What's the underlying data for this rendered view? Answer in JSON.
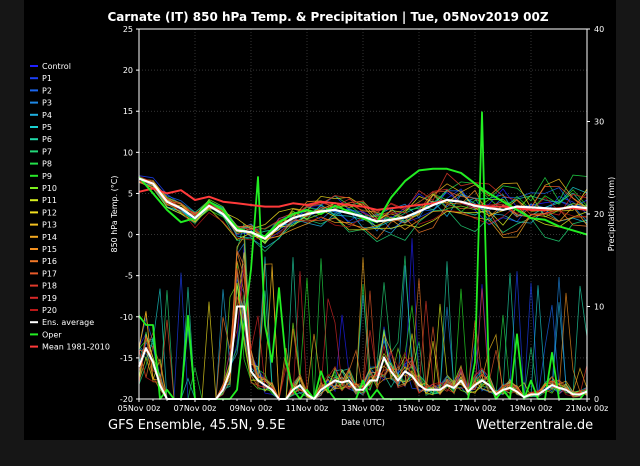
{
  "title": "Carnate  (IT)  850 hPa Temp. & Precipitation | Tue, 05Nov2019 00Z",
  "footer_left": "GFS Ensemble, 45.5N, 9.5E",
  "footer_right": "Wetterzentrale.de",
  "chart_data": {
    "type": "line",
    "xlabel": "Date (UTC)",
    "ylabel_left": "850 hPa Temp. (°C)",
    "ylabel_right": "Precipitation (mm)",
    "x_ticks": [
      "05Nov 00z",
      "07Nov 00z",
      "09Nov 00z",
      "11Nov 00z",
      "13Nov 00z",
      "15Nov 00z",
      "17Nov 00z",
      "19Nov 00z",
      "21Nov 00z"
    ],
    "x_range_hours": [
      0,
      384
    ],
    "ylim_left": [
      -20,
      25
    ],
    "ylim_right": [
      0,
      40
    ],
    "y_ticks_left": [
      "25",
      "20",
      "15",
      "10",
      "5",
      "0",
      "-5",
      "-10",
      "-15",
      "-20"
    ],
    "y_ticks_right": [
      "40",
      "30",
      "20",
      "10",
      "0"
    ],
    "grid": true,
    "legend_position": "left",
    "legend": [
      {
        "name": "Control",
        "color": "#2020ff"
      },
      {
        "name": "P1",
        "color": "#1b3ff6"
      },
      {
        "name": "P2",
        "color": "#1a66ee"
      },
      {
        "name": "P3",
        "color": "#1e88e5"
      },
      {
        "name": "P4",
        "color": "#1fb0e0"
      },
      {
        "name": "P5",
        "color": "#1ad0d0"
      },
      {
        "name": "P6",
        "color": "#20d8a8"
      },
      {
        "name": "P7",
        "color": "#22d878"
      },
      {
        "name": "P8",
        "color": "#22e04a"
      },
      {
        "name": "P9",
        "color": "#28e828"
      },
      {
        "name": "P10",
        "color": "#7cf01e"
      },
      {
        "name": "P11",
        "color": "#d8f020"
      },
      {
        "name": "P12",
        "color": "#f2e020"
      },
      {
        "name": "P13",
        "color": "#f2c020"
      },
      {
        "name": "P14",
        "color": "#f2a820"
      },
      {
        "name": "P15",
        "color": "#f29020"
      },
      {
        "name": "P16",
        "color": "#f07828"
      },
      {
        "name": "P17",
        "color": "#e85a2a"
      },
      {
        "name": "P18",
        "color": "#e03a2a"
      },
      {
        "name": "P19",
        "color": "#d82828"
      },
      {
        "name": "P20",
        "color": "#b81818"
      },
      {
        "name": "Ens. average",
        "color": "#ffffff"
      },
      {
        "name": "Oper",
        "color": "#22ee22"
      },
      {
        "name": "Mean 1981-2010",
        "color": "#ff3a3a"
      }
    ],
    "series": [
      {
        "name": "Ens. average",
        "axis": "left",
        "x": [
          0,
          12,
          24,
          36,
          48,
          60,
          72,
          84,
          96,
          108,
          120,
          132,
          144,
          156,
          168,
          180,
          192,
          204,
          216,
          228,
          240,
          252,
          264,
          276,
          288,
          300,
          312,
          324,
          336,
          348,
          360,
          372,
          384
        ],
        "y": [
          6.8,
          6.2,
          4.0,
          3.2,
          2.0,
          3.5,
          2.5,
          0.5,
          0.3,
          -0.5,
          1.0,
          2.0,
          2.5,
          2.8,
          3.0,
          2.6,
          2.2,
          1.6,
          1.8,
          2.1,
          2.8,
          3.6,
          4.2,
          4.0,
          3.5,
          3.2,
          3.0,
          3.4,
          3.3,
          3.2,
          3.1,
          3.4,
          3.2
        ]
      },
      {
        "name": "Mean 1981-2010",
        "axis": "left",
        "x": [
          0,
          12,
          24,
          36,
          48,
          60,
          72,
          84,
          96,
          108,
          120,
          132,
          144,
          156,
          168,
          180,
          192,
          204,
          216,
          228,
          240,
          252,
          264,
          276,
          288,
          300,
          312,
          324,
          336,
          348,
          360,
          372,
          384
        ],
        "y": [
          5.2,
          5.6,
          5.0,
          5.4,
          4.2,
          4.6,
          4.0,
          3.8,
          3.6,
          3.4,
          3.4,
          3.8,
          3.6,
          4.0,
          3.8,
          3.6,
          3.4,
          3.0,
          3.2,
          3.4,
          3.6,
          3.8,
          4.2,
          4.0,
          3.6,
          3.4,
          3.4,
          3.2,
          3.0,
          3.0,
          3.2,
          3.2,
          3.0
        ]
      },
      {
        "name": "Oper",
        "axis": "left",
        "x": [
          0,
          12,
          24,
          36,
          48,
          60,
          72,
          84,
          96,
          108,
          120,
          132,
          144,
          156,
          168,
          180,
          192,
          204,
          216,
          228,
          240,
          252,
          264,
          276,
          288,
          300,
          312,
          324,
          336,
          348,
          360,
          372,
          384
        ],
        "y": [
          7.0,
          5.0,
          3.0,
          1.5,
          2.0,
          4.0,
          3.0,
          0.8,
          0.2,
          -0.2,
          1.5,
          2.5,
          3.0,
          2.5,
          3.5,
          2.8,
          2.0,
          1.5,
          4.5,
          6.5,
          7.8,
          8.0,
          8.0,
          7.5,
          6.2,
          5.0,
          4.0,
          3.0,
          2.0,
          1.8,
          1.0,
          0.5,
          0.0
        ]
      },
      {
        "name": "Oper precipitation",
        "axis": "right",
        "x": [
          0,
          6,
          12,
          18,
          24,
          30,
          36,
          42,
          48,
          54,
          60,
          66,
          72,
          78,
          84,
          90,
          96,
          102,
          108,
          114,
          120,
          126,
          132,
          138,
          144,
          150,
          156,
          162,
          168,
          174,
          180,
          186,
          192,
          198,
          204,
          210,
          216,
          222,
          228,
          234,
          240,
          246,
          252,
          258,
          264,
          270,
          276,
          282,
          288,
          294,
          300,
          306,
          312,
          318,
          324,
          330,
          336,
          342,
          348,
          354,
          360,
          366,
          372,
          378,
          384
        ],
        "y": [
          9,
          8,
          8,
          0,
          1,
          0,
          0,
          9,
          0,
          0,
          0,
          0,
          0,
          0,
          1,
          8,
          14,
          24,
          8,
          4,
          12,
          4,
          1,
          0,
          1,
          0,
          3,
          1,
          0,
          0,
          0,
          0,
          2,
          0,
          1,
          0,
          0,
          0,
          0,
          0,
          0,
          0,
          0,
          0,
          0,
          0,
          0,
          0,
          4,
          31,
          2,
          0,
          1,
          0,
          7,
          0,
          2,
          0,
          0,
          5,
          0,
          0,
          0,
          0,
          1
        ]
      },
      {
        "name": "Ens. average precipitation",
        "axis": "right",
        "x": [
          0,
          6,
          12,
          18,
          24,
          30,
          36,
          42,
          48,
          54,
          60,
          66,
          72,
          78,
          84,
          90,
          96,
          102,
          108,
          114,
          120,
          126,
          132,
          138,
          144,
          150,
          156,
          162,
          168,
          174,
          180,
          186,
          192,
          198,
          204,
          210,
          216,
          222,
          228,
          234,
          240,
          246,
          252,
          258,
          264,
          270,
          276,
          282,
          288,
          294,
          300,
          306,
          312,
          318,
          324,
          330,
          336,
          342,
          348,
          354,
          360,
          366,
          372,
          378,
          384
        ],
        "y": [
          3.5,
          5.5,
          4,
          1.5,
          0,
          0,
          0,
          0,
          0,
          0,
          0,
          0,
          1,
          3,
          10,
          10,
          3,
          2,
          1.5,
          1,
          0,
          0,
          1,
          1.5,
          0.5,
          0,
          1,
          1.5,
          2,
          1.8,
          2,
          1,
          1,
          2,
          2,
          4.5,
          3,
          2,
          3,
          2.5,
          1.5,
          1,
          1,
          1,
          1.5,
          1.2,
          2,
          0.8,
          1.5,
          2,
          1.5,
          0.5,
          1,
          1.2,
          0.8,
          0.2,
          0.5,
          0.5,
          1,
          1.5,
          1.2,
          1,
          0.5,
          0.5,
          0.8
        ]
      }
    ]
  }
}
